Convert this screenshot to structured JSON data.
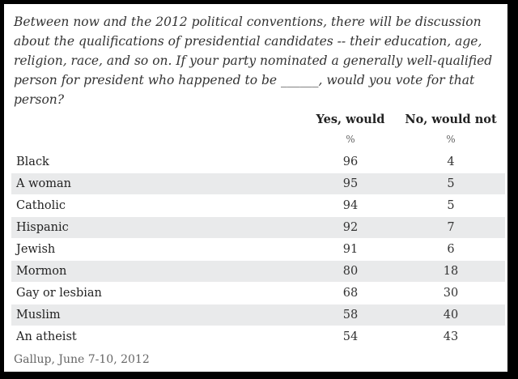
{
  "question": "Between now and the 2012 political conventions, there will be discussion about the qualifications of presidential candidates -- their education, age, religion, race, and so on. If your party nominated a generally well-qualified person for president who happened to be ______, would you vote for that person?",
  "chart_data": {
    "type": "table",
    "columns": [
      "Yes, would",
      "No, would not"
    ],
    "units": [
      "%",
      "%"
    ],
    "rows": [
      {
        "label": "Black",
        "yes": 96,
        "no": 4
      },
      {
        "label": "A woman",
        "yes": 95,
        "no": 5
      },
      {
        "label": "Catholic",
        "yes": 94,
        "no": 5
      },
      {
        "label": "Hispanic",
        "yes": 92,
        "no": 7
      },
      {
        "label": "Jewish",
        "yes": 91,
        "no": 6
      },
      {
        "label": "Mormon",
        "yes": 80,
        "no": 18
      },
      {
        "label": "Gay or lesbian",
        "yes": 68,
        "no": 30
      },
      {
        "label": "Muslim",
        "yes": 58,
        "no": 40
      },
      {
        "label": "An atheist",
        "yes": 54,
        "no": 43
      }
    ]
  },
  "source": "Gallup, June 7-10, 2012",
  "colors": {
    "row_stripe": "#e9eaeb",
    "frame": "#000000"
  }
}
